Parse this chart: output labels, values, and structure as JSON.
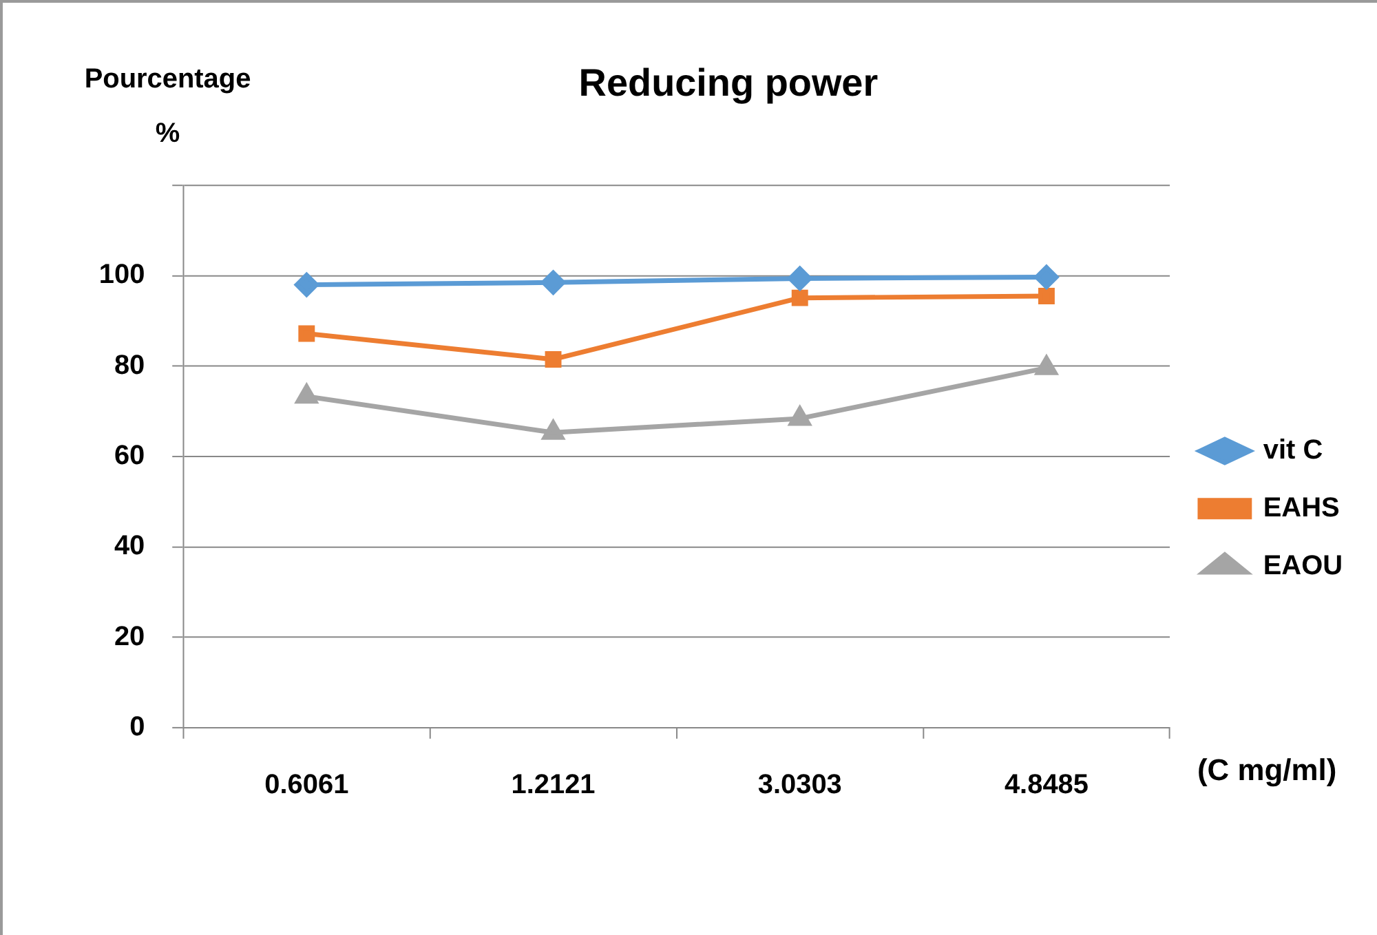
{
  "chart_data": {
    "type": "line",
    "title": "Reducing power",
    "ylabel": "Pourcentage %",
    "xlabel": "(C mg/ml)",
    "categories": [
      "0.6061",
      "1.2121",
      "3.0303",
      "4.8485"
    ],
    "series": [
      {
        "name": "vit C",
        "color": "#5b9bd5",
        "marker": "diamond",
        "values": [
          98,
          98.5,
          99.4,
          99.7
        ]
      },
      {
        "name": "EAHS",
        "color": "#ed7d31",
        "marker": "square",
        "values": [
          87.2,
          81.5,
          95.1,
          95.5
        ]
      },
      {
        "name": "EAOU",
        "color": "#a5a5a5",
        "marker": "triangle",
        "values": [
          73.3,
          65.3,
          68.4,
          79.6
        ]
      }
    ],
    "ylim": [
      0,
      120
    ],
    "yticks": [
      0,
      20,
      40,
      60,
      80,
      100,
      {
        "value": 120,
        "label": null
      }
    ],
    "grid": "y",
    "legend": "right"
  }
}
